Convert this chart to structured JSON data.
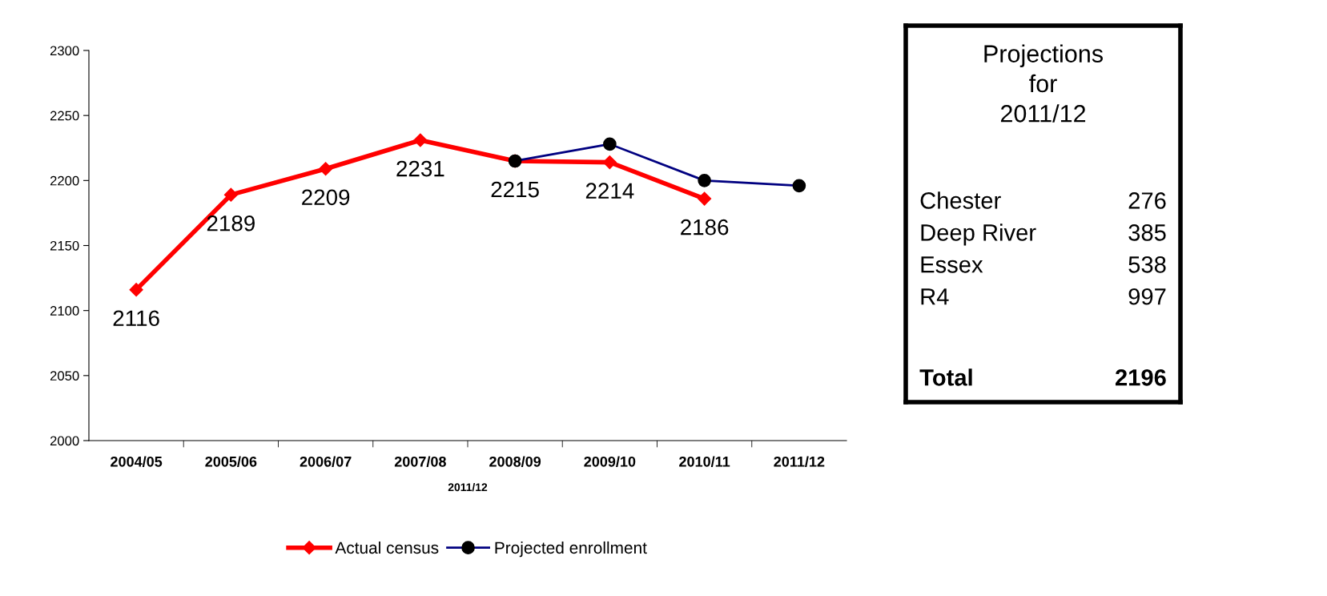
{
  "chart_data": [
    {
      "type": "line",
      "xlabel": "2011/12",
      "categories": [
        "2004/05",
        "2005/06",
        "2006/07",
        "2007/08",
        "2008/09",
        "2009/10",
        "2010/11",
        "2011/12"
      ],
      "series": [
        {
          "name": "Actual census",
          "color": "#ff0000",
          "marker": "diamond",
          "values": [
            2116,
            2189,
            2209,
            2231,
            2215,
            2214,
            2186,
            null
          ],
          "value_labels": [
            "2116",
            "2189",
            "2209",
            "2231",
            "2215",
            "2214",
            "2186",
            null
          ]
        },
        {
          "name": "Projected enrollment",
          "color": "#000080",
          "marker": "circle",
          "values": [
            null,
            null,
            null,
            null,
            2215,
            2228,
            2200,
            2196
          ]
        }
      ],
      "ylim": [
        2000,
        2300
      ],
      "yticks": [
        2000,
        2050,
        2100,
        2150,
        2200,
        2250,
        2300
      ],
      "grid": false,
      "legend": "bottom"
    },
    {
      "type": "other",
      "title": "Projections\nfor\n2011/12",
      "categories": [
        "Chester",
        "Deep River",
        "Essex",
        "R4",
        "Total"
      ],
      "values": [
        276,
        385,
        538,
        997,
        2196
      ],
      "data_labels": true
    }
  ]
}
